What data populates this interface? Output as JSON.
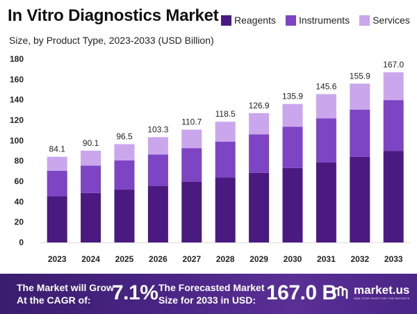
{
  "header": {
    "title": "In Vitro Diagnostics Market",
    "subtitle": "Size, by Product Type, 2023-2033 (USD Billion)"
  },
  "legend": [
    {
      "label": "Reagents",
      "color": "#4a1a80"
    },
    {
      "label": "Instruments",
      "color": "#7d45c3"
    },
    {
      "label": "Services",
      "color": "#caa7ec"
    }
  ],
  "chart_data": {
    "type": "bar",
    "stacked": true,
    "categories": [
      "2023",
      "2024",
      "2025",
      "2026",
      "2027",
      "2028",
      "2029",
      "2030",
      "2031",
      "2032",
      "2033"
    ],
    "series": [
      {
        "name": "Reagents",
        "color": "#4a1a80",
        "values": [
          45.3,
          48.5,
          51.8,
          55.5,
          59.6,
          63.7,
          68.3,
          73.1,
          78.4,
          83.9,
          89.9
        ]
      },
      {
        "name": "Instruments",
        "color": "#7d45c3",
        "values": [
          25.1,
          26.9,
          28.8,
          30.8,
          33.0,
          35.3,
          37.8,
          40.5,
          43.4,
          46.5,
          49.8
        ]
      },
      {
        "name": "Services",
        "color": "#caa7ec",
        "values": [
          13.7,
          14.7,
          15.9,
          17.0,
          18.1,
          19.5,
          20.8,
          22.3,
          23.8,
          25.5,
          27.3
        ]
      }
    ],
    "totals": [
      "84.1",
      "90.1",
      "96.5",
      "103.3",
      "110.7",
      "118.5",
      "126.9",
      "135.9",
      "145.6",
      "155.9",
      "167.0"
    ],
    "yticks": [
      0,
      20,
      40,
      60,
      80,
      100,
      120,
      140,
      160,
      180
    ],
    "ylim": [
      0,
      180
    ],
    "grid": false,
    "legend_position": "top-right"
  },
  "footer": {
    "grow_line1": "The Market will Grow",
    "grow_line2": "At the CAGR of:",
    "cagr": "7.1%",
    "forecast_line1": "The Forecasted Market",
    "forecast_line2": "Size for 2033 in USD:",
    "forecast_value": "167.0 B",
    "brand": "market.us",
    "brand_tagline": "ONE STOP SHOP FOR THE REPORTS"
  }
}
